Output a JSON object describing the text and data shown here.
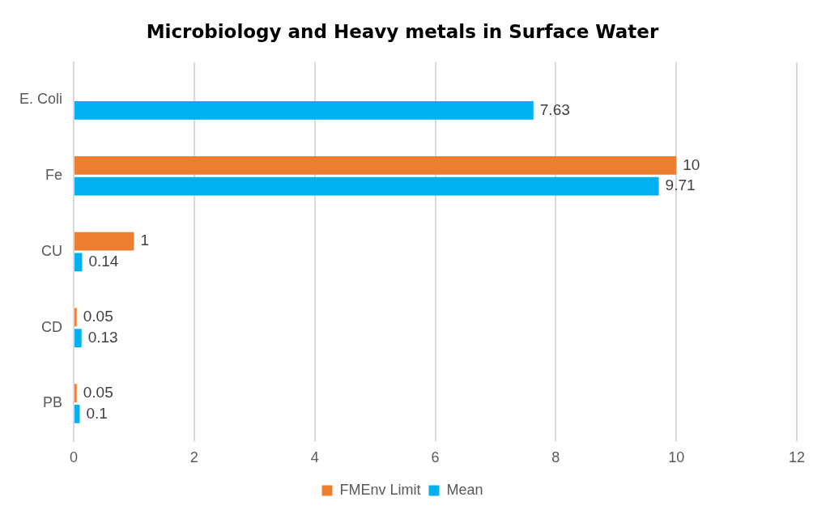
{
  "chart_data": {
    "type": "bar",
    "orientation": "horizontal",
    "title": "Microbiology and Heavy metals in Surface Water",
    "categories": [
      "E. Coli",
      "Fe",
      "CU",
      "CD",
      "PB"
    ],
    "series": [
      {
        "name": "FMEnv Limit",
        "color": "#ed7d31",
        "values": [
          null,
          10,
          1,
          0.05,
          0.05
        ]
      },
      {
        "name": "Mean",
        "color": "#00b0f0",
        "values": [
          7.63,
          9.71,
          0.14,
          0.13,
          0.1
        ]
      }
    ],
    "xlim": [
      0,
      12
    ],
    "xticks": [
      0,
      2,
      4,
      6,
      8,
      10,
      12
    ],
    "grid": "x",
    "legend": "bottom",
    "data_labels": true
  }
}
